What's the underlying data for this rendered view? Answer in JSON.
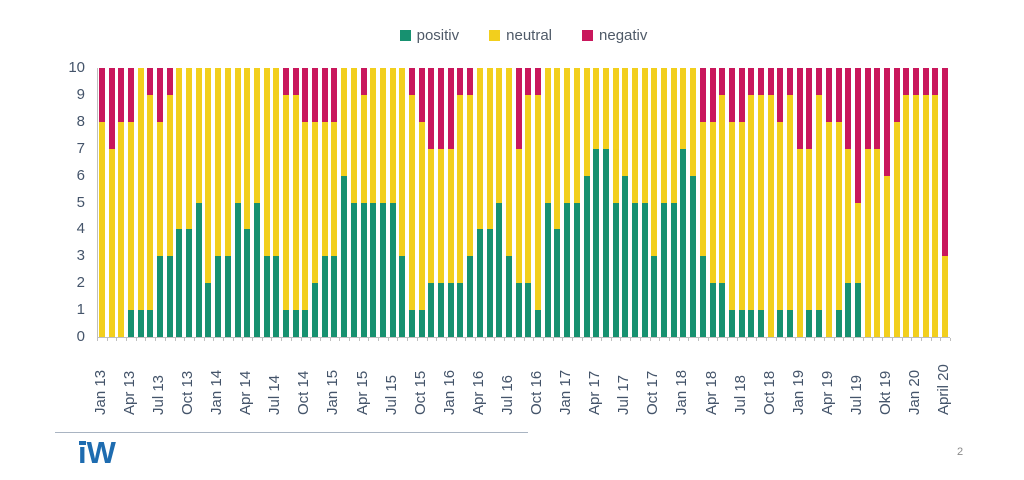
{
  "chart_data": {
    "type": "bar",
    "stacked": true,
    "title": "",
    "xlabel": "",
    "ylabel": "",
    "ylim": [
      0,
      10
    ],
    "y_ticks": [
      0,
      1,
      2,
      3,
      4,
      5,
      6,
      7,
      8,
      9,
      10
    ],
    "grid": false,
    "legend_position": "top-center",
    "x_tick_labels": [
      "Jan 13",
      "Apr 13",
      "Jul 13",
      "Oct 13",
      "Jan 14",
      "Apr 14",
      "Jul 14",
      "Oct 14",
      "Jan 15",
      "Apr 15",
      "Jul 15",
      "Oct 15",
      "Jan 16",
      "Apr 16",
      "Jul 16",
      "Oct 16",
      "Jan 17",
      "Apr 17",
      "Jul 17",
      "Oct 17",
      "Jan 18",
      "Apr 18",
      "Jul 18",
      "Oct 18",
      "Jan 19",
      "Apr 19",
      "Jul 19",
      "Okt 19",
      "Jan 20",
      "April 20"
    ],
    "tick_every": 3,
    "n_bars": 88,
    "bar_total": 10,
    "series": [
      {
        "name": "positiv",
        "color": "#179170",
        "values": [
          0,
          0,
          0,
          1,
          1,
          1,
          3,
          3,
          4,
          4,
          5,
          2,
          3,
          3,
          5,
          4,
          5,
          3,
          3,
          1,
          1,
          1,
          2,
          3,
          3,
          6,
          5,
          5,
          5,
          5,
          5,
          3,
          1,
          1,
          2,
          2,
          2,
          2,
          3,
          4,
          4,
          5,
          3,
          2,
          2,
          1,
          5,
          4,
          5,
          5,
          6,
          7,
          7,
          5,
          6,
          5,
          5,
          3,
          5,
          5,
          7,
          6,
          3,
          2,
          2,
          1,
          1,
          1,
          1,
          0,
          1,
          1,
          0,
          1,
          1,
          0,
          1,
          2,
          2,
          0,
          0,
          0,
          0,
          0,
          0,
          0,
          0,
          0
        ]
      },
      {
        "name": "neutral",
        "color": "#F2CF1D",
        "values": [
          8,
          7,
          8,
          7,
          9,
          8,
          5,
          6,
          6,
          6,
          5,
          8,
          7,
          7,
          5,
          6,
          5,
          7,
          7,
          8,
          8,
          7,
          6,
          5,
          5,
          4,
          5,
          4,
          5,
          5,
          5,
          7,
          8,
          7,
          5,
          5,
          5,
          7,
          6,
          6,
          6,
          5,
          7,
          5,
          7,
          8,
          5,
          6,
          5,
          5,
          4,
          3,
          3,
          5,
          4,
          5,
          5,
          7,
          5,
          5,
          3,
          4,
          5,
          6,
          7,
          7,
          7,
          8,
          8,
          9,
          7,
          8,
          7,
          6,
          8,
          8,
          7,
          5,
          3,
          7,
          7,
          6,
          8,
          9,
          9,
          9,
          9,
          3
        ]
      },
      {
        "name": "negativ",
        "color": "#C9175C",
        "values": [
          2,
          3,
          2,
          2,
          0,
          1,
          2,
          1,
          0,
          0,
          0,
          0,
          0,
          0,
          0,
          0,
          0,
          0,
          0,
          1,
          1,
          2,
          2,
          2,
          2,
          0,
          0,
          1,
          0,
          0,
          0,
          0,
          1,
          2,
          3,
          3,
          3,
          1,
          1,
          0,
          0,
          0,
          0,
          3,
          1,
          1,
          0,
          0,
          0,
          0,
          0,
          0,
          0,
          0,
          0,
          0,
          0,
          0,
          0,
          0,
          0,
          0,
          2,
          2,
          1,
          2,
          2,
          1,
          1,
          1,
          2,
          1,
          3,
          3,
          1,
          2,
          2,
          3,
          5,
          3,
          3,
          4,
          2,
          1,
          1,
          1,
          1,
          7
        ]
      }
    ]
  },
  "legend": {
    "items": [
      {
        "label": "positiv",
        "color": "#179170"
      },
      {
        "label": "neutral",
        "color": "#F2CF1D"
      },
      {
        "label": "negativ",
        "color": "#C9175C"
      }
    ]
  },
  "footer": {
    "logo_text": "iW",
    "page_number": "2"
  },
  "colors": {
    "positiv": "#179170",
    "neutral": "#F2CF1D",
    "negativ": "#C9175C",
    "axis_text": "#44546A",
    "axis_line": "#bfbfbf",
    "logo_blue": "#1e6cb0"
  }
}
